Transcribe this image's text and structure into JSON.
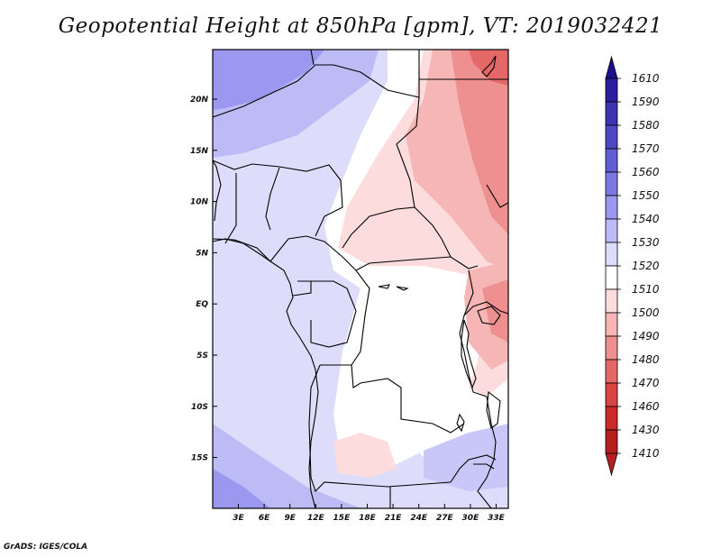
{
  "title": "Geopotential Height at 850hPa [gpm], VT: 2019032421",
  "credit": "GrADS: IGES/COLA",
  "lat_labels": [
    "20N",
    "15N",
    "10N",
    "5N",
    "EQ",
    "5S",
    "10S",
    "15S"
  ],
  "lon_labels": [
    "3E",
    "6E",
    "9E",
    "12E",
    "15E",
    "18E",
    "21E",
    "24E",
    "27E",
    "30E",
    "33E"
  ],
  "colorbar": {
    "levels": [
      "1610",
      "1590",
      "1580",
      "1570",
      "1560",
      "1550",
      "1540",
      "1530",
      "1520",
      "1510",
      "1500",
      "1490",
      "1480",
      "1470",
      "1460",
      "1430",
      "1410"
    ],
    "colors": [
      "#1d0f8c",
      "#2a1f9e",
      "#3b33b0",
      "#4d48c2",
      "#605ed3",
      "#7b78e4",
      "#9a98ef",
      "#bcbbf6",
      "#dddcfb",
      "#ffffff",
      "#fcdcdc",
      "#f6b6b6",
      "#ee9090",
      "#e56868",
      "#d94444",
      "#c92a2a",
      "#b51f1f"
    ]
  },
  "chart_data": {
    "type": "heatmap",
    "title": "Geopotential Height at 850hPa [gpm], VT: 2019032421",
    "variable": "Geopotential Height at 850hPa",
    "units": "gpm",
    "valid_time": "2019032421",
    "lon_range": [
      0,
      34
    ],
    "lat_range": [
      -20,
      24
    ],
    "xticks": [
      "3E",
      "6E",
      "9E",
      "12E",
      "15E",
      "18E",
      "21E",
      "24E",
      "27E",
      "30E",
      "33E"
    ],
    "yticks": [
      "20N",
      "15N",
      "10N",
      "5N",
      "EQ",
      "5S",
      "10S",
      "15S"
    ],
    "colorbar_levels": [
      1610,
      1590,
      1580,
      1570,
      1560,
      1550,
      1540,
      1530,
      1520,
      1510,
      1500,
      1490,
      1480,
      1470,
      1460,
      1430,
      1410
    ]
  }
}
